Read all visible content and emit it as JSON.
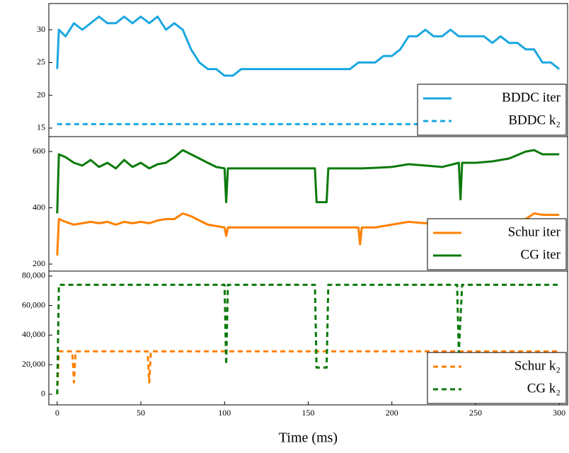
{
  "chart_data": [
    {
      "type": "line",
      "legend": "lower right",
      "xlim": [
        -5,
        305
      ],
      "ylim": [
        13.7,
        34
      ],
      "yticks": [
        15,
        20,
        25,
        30
      ],
      "x": [
        0,
        1,
        5,
        10,
        15,
        20,
        25,
        30,
        35,
        40,
        45,
        50,
        55,
        60,
        65,
        70,
        75,
        80,
        85,
        90,
        95,
        100,
        105,
        110,
        115,
        120,
        125,
        130,
        135,
        140,
        145,
        150,
        155,
        160,
        165,
        170,
        175,
        180,
        185,
        190,
        195,
        200,
        205,
        210,
        215,
        220,
        225,
        230,
        235,
        240,
        245,
        250,
        255,
        260,
        265,
        270,
        275,
        280,
        285,
        290,
        295,
        300
      ],
      "series": [
        {
          "name": "BDDC iter",
          "color": "#1aa7e0",
          "dashed": false,
          "values": [
            24,
            30,
            29,
            31,
            30,
            31,
            32,
            31,
            31,
            32,
            31,
            32,
            31,
            32,
            30,
            31,
            30,
            27,
            25,
            24,
            24,
            23,
            23,
            24,
            24,
            24,
            24,
            24,
            24,
            24,
            24,
            24,
            24,
            24,
            24,
            24,
            24,
            25,
            25,
            25,
            26,
            26,
            27,
            29,
            29,
            30,
            29,
            29,
            30,
            29,
            29,
            29,
            29,
            28,
            29,
            28,
            28,
            27,
            27,
            25,
            25,
            24
          ]
        },
        {
          "name": "BDDC k₂",
          "color": "#1aa7e0",
          "dashed": true,
          "values": [
            15.6,
            15.6,
            15.6,
            15.6,
            15.6,
            15.6,
            15.6,
            15.6,
            15.6,
            15.6,
            15.6,
            15.6,
            15.6,
            15.6,
            15.6,
            15.6,
            15.6,
            15.6,
            15.6,
            15.6,
            15.6,
            15.6,
            15.6,
            15.6,
            15.6,
            15.6,
            15.6,
            15.6,
            15.6,
            15.6,
            15.6,
            15.6,
            15.6,
            15.6,
            15.6,
            15.6,
            15.6,
            15.6,
            15.6,
            15.6,
            15.6,
            15.6,
            15.6,
            15.6,
            15.6,
            15.6,
            15.6,
            15.6,
            15.6,
            15.6,
            15.6,
            15.6,
            15.6,
            15.6,
            15.6,
            15.6,
            15.6,
            15.6,
            15.6,
            15.6,
            15.6,
            15.6
          ]
        }
      ]
    },
    {
      "type": "line",
      "legend": "lower right",
      "xlim": [
        -5,
        305
      ],
      "ylim": [
        175,
        653
      ],
      "yticks": [
        200,
        400,
        600
      ],
      "x": [
        0,
        1,
        5,
        10,
        15,
        20,
        25,
        30,
        35,
        40,
        45,
        50,
        55,
        60,
        65,
        70,
        75,
        80,
        85,
        90,
        95,
        100,
        101,
        102,
        110,
        120,
        130,
        140,
        150,
        154,
        155,
        161,
        162,
        170,
        180,
        181,
        182,
        190,
        200,
        210,
        220,
        230,
        240,
        241,
        242,
        250,
        260,
        270,
        280,
        285,
        290,
        300
      ],
      "series": [
        {
          "name": "Schur iter",
          "color": "#ff8000",
          "dashed": false,
          "values": [
            230,
            360,
            350,
            340,
            345,
            350,
            345,
            350,
            340,
            350,
            345,
            350,
            345,
            355,
            360,
            360,
            380,
            370,
            355,
            340,
            335,
            330,
            300,
            330,
            330,
            330,
            330,
            330,
            330,
            330,
            330,
            330,
            330,
            330,
            330,
            270,
            330,
            330,
            340,
            350,
            345,
            350,
            350,
            350,
            350,
            350,
            350,
            355,
            360,
            380,
            375,
            375
          ]
        },
        {
          "name": "CG iter",
          "color": "#0b7a0b",
          "dashed": false,
          "values": [
            380,
            590,
            580,
            560,
            550,
            570,
            545,
            560,
            540,
            570,
            545,
            560,
            540,
            555,
            560,
            580,
            605,
            590,
            575,
            560,
            545,
            540,
            420,
            540,
            540,
            540,
            540,
            540,
            540,
            540,
            420,
            420,
            540,
            540,
            540,
            540,
            540,
            542,
            545,
            555,
            550,
            545,
            560,
            430,
            560,
            560,
            565,
            575,
            600,
            605,
            590,
            590
          ]
        }
      ]
    },
    {
      "type": "line",
      "legend": "lower right",
      "xlim": [
        -5,
        305
      ],
      "ylim": [
        -7200,
        83300
      ],
      "yticks": [
        {
          "value": 0,
          "label": "0"
        },
        {
          "value": 20000,
          "label": "20,000"
        },
        {
          "value": 40000,
          "label": "40,000"
        },
        {
          "value": 60000,
          "label": "60,000"
        },
        {
          "value": 80000,
          "label": "80,000"
        }
      ],
      "xticks": [
        0,
        50,
        100,
        150,
        200,
        250,
        300
      ],
      "xlabel": "Time (ms)",
      "x": [
        0,
        1,
        2,
        9,
        10,
        11,
        54,
        55,
        56,
        100,
        101,
        102,
        154,
        155,
        161,
        162,
        239,
        240,
        242,
        300
      ],
      "series": [
        {
          "name": "Schur k₂",
          "color": "#ff8000",
          "dashed": true,
          "values": [
            0,
            29000,
            29000,
            29000,
            8000,
            29000,
            29000,
            8000,
            29000,
            29000,
            29000,
            29000,
            29000,
            29000,
            29000,
            29000,
            29000,
            29000,
            29000,
            29000
          ]
        },
        {
          "name": "CG k₂",
          "color": "#0b7a0b",
          "dashed": true,
          "values": [
            0,
            74000,
            74000,
            74000,
            74000,
            74000,
            74000,
            74000,
            74000,
            74000,
            20000,
            74000,
            74000,
            18000,
            18000,
            74000,
            74000,
            28000,
            74000,
            74000
          ]
        }
      ]
    }
  ]
}
